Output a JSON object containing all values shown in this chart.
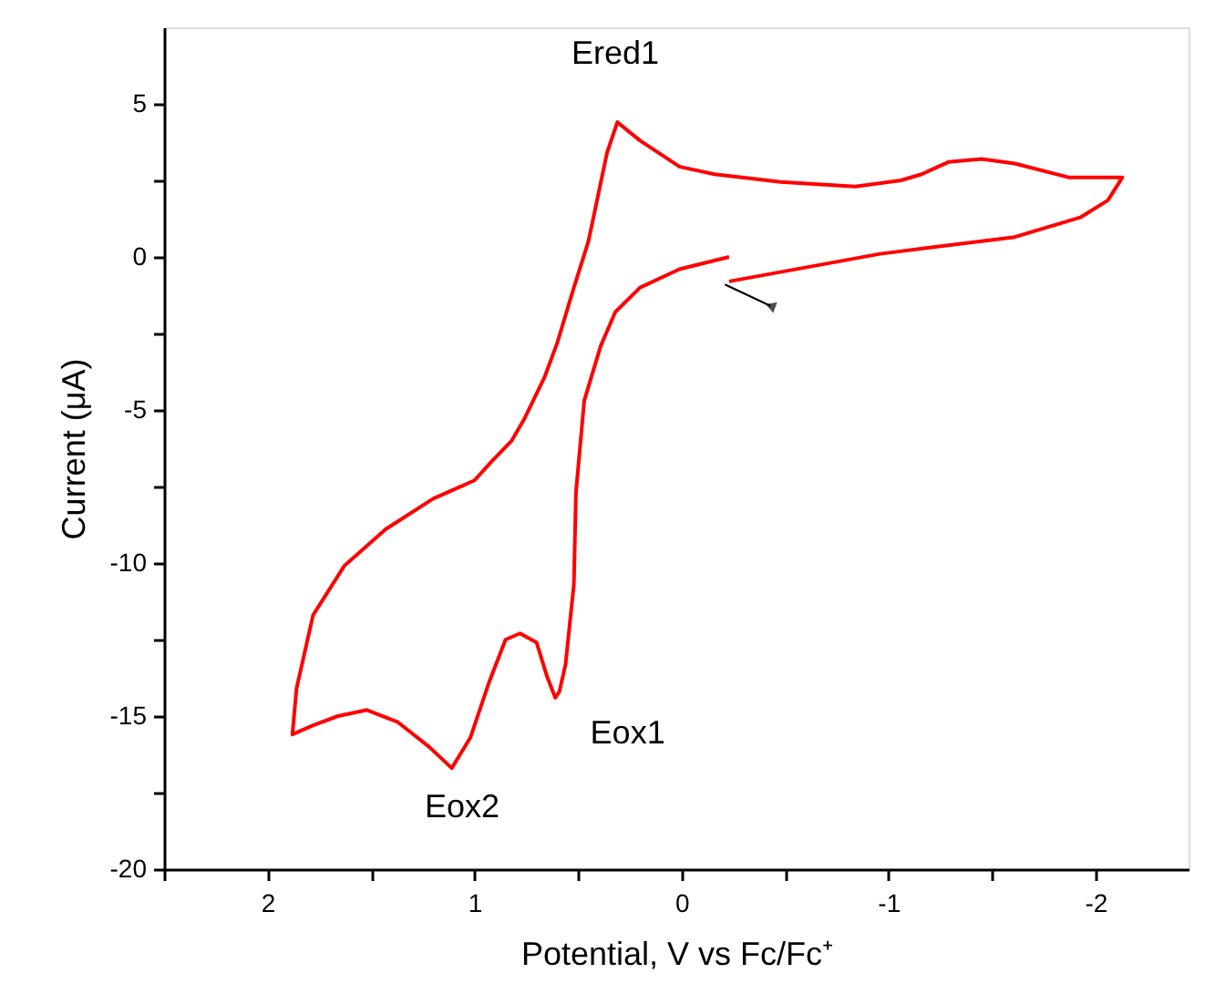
{
  "chart_data": {
    "type": "line",
    "xlabel": "Potential, V vs Fc/Fc⁺",
    "ylabel": "Current (μA)",
    "xlim": [
      2.5,
      -2.45
    ],
    "ylim": [
      -20,
      7.5
    ],
    "xticks": [
      {
        "value": 2.5,
        "label": null
      },
      2,
      {
        "value": 1.5,
        "label": null
      },
      1,
      {
        "value": 0.5,
        "label": null
      },
      0,
      {
        "value": -0.5,
        "label": null
      },
      -1,
      {
        "value": -1.5,
        "label": null
      },
      -2
    ],
    "yticks": [
      -20,
      {
        "value": -17.5,
        "label": null
      },
      -15,
      {
        "value": -12.5,
        "label": null
      },
      -10,
      {
        "value": -7.5,
        "label": null
      },
      -5,
      {
        "value": -2.5,
        "label": null
      },
      0,
      {
        "value": 2.5,
        "label": null
      },
      5
    ],
    "grid": false,
    "marker": "none",
    "line_style": "solid",
    "series": [
      {
        "color": "#ff0000",
        "x": [
          -0.23,
          0.01,
          0.2,
          0.32,
          0.39,
          0.47,
          0.51,
          0.52,
          0.56,
          0.59,
          0.61,
          0.65,
          0.7,
          0.78,
          0.85,
          0.93,
          1.02,
          1.11,
          1.22,
          1.37,
          1.52,
          1.66,
          1.78,
          1.88,
          1.86,
          1.78,
          1.63,
          1.43,
          1.2,
          1.0,
          0.92,
          0.82,
          0.76,
          0.66,
          0.6,
          0.52,
          0.45,
          0.36,
          0.31,
          0.2,
          0.01,
          -0.16,
          -0.48,
          -0.84,
          -1.06,
          -1.16,
          -1.29,
          -1.45,
          -1.61,
          -1.87,
          -2.13,
          -2.06,
          -1.93,
          -1.61,
          -0.96,
          -0.23
        ],
        "values": [
          0.0,
          -0.4,
          -1.0,
          -1.8,
          -2.9,
          -4.7,
          -7.7,
          -10.7,
          -13.3,
          -14.2,
          -14.4,
          -13.7,
          -12.6,
          -12.3,
          -12.5,
          -13.9,
          -15.7,
          -16.7,
          -16.0,
          -15.2,
          -14.8,
          -15.0,
          -15.3,
          -15.6,
          -14.1,
          -11.7,
          -10.1,
          -8.9,
          -7.9,
          -7.3,
          -6.7,
          -6.0,
          -5.3,
          -3.9,
          -2.8,
          -1.0,
          0.5,
          3.4,
          4.4,
          3.8,
          2.95,
          2.7,
          2.45,
          2.3,
          2.5,
          2.7,
          3.1,
          3.2,
          3.05,
          2.6,
          2.6,
          1.85,
          1.3,
          0.65,
          0.1,
          -0.8
        ]
      }
    ],
    "annotations": [
      {
        "text": "Ered1",
        "x": 0.32,
        "y": 4.4
      },
      {
        "text": "Eox1",
        "x": 0.61,
        "y": -14.4
      },
      {
        "text": "Eox2",
        "x": 1.11,
        "y": -16.7
      }
    ]
  }
}
